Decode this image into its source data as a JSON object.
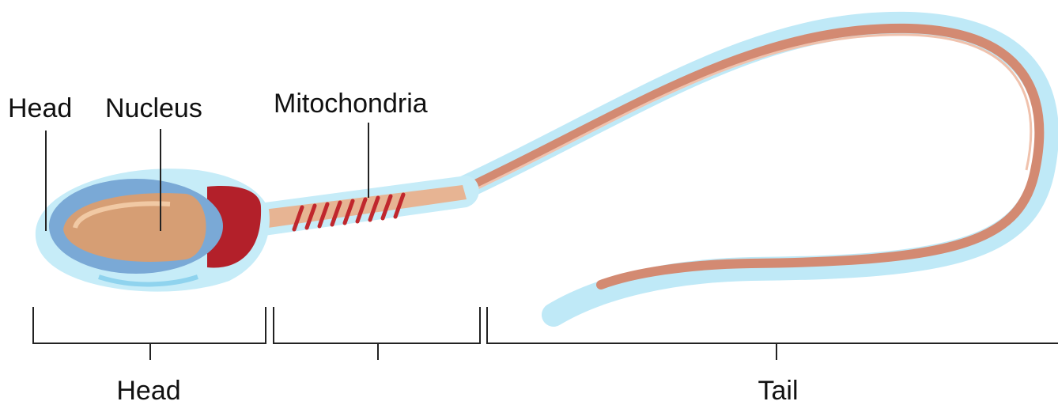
{
  "callouts": [
    {
      "label": "Head"
    },
    {
      "label": "Nucleus"
    },
    {
      "label": "Mitochondria"
    }
  ],
  "segments": [
    {
      "label": "Head"
    },
    {
      "label": "Tail"
    }
  ]
}
